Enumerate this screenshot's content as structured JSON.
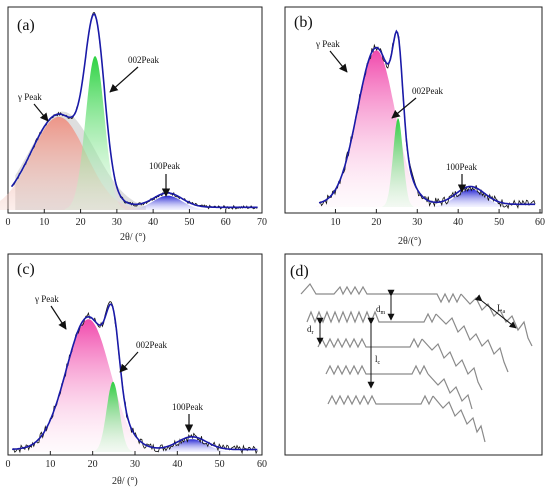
{
  "panels": {
    "a": {
      "label": "(a)",
      "xlabel": "2θ/ (°)",
      "xticks": [
        "0",
        "10",
        "20",
        "30",
        "40",
        "50",
        "60",
        "70"
      ],
      "annotations": {
        "gamma": "γ Peak",
        "p002": "002Peak",
        "p100": "100Peak"
      }
    },
    "b": {
      "label": "(b)",
      "xlabel": "2θ/(°)",
      "xticks": [
        "10",
        "20",
        "30",
        "40",
        "50",
        "60"
      ],
      "annotations": {
        "gamma": "γ Peak",
        "p002": "002Peak",
        "p100": "100Peak"
      }
    },
    "c": {
      "label": "(c)",
      "xlabel": "2θ/ (°)",
      "xticks": [
        "0",
        "10",
        "20",
        "30",
        "40",
        "50",
        "60"
      ],
      "annotations": {
        "gamma": "γ Peak",
        "p002": "002Peak",
        "p100": "100Peak"
      }
    },
    "d": {
      "label": "(d)",
      "labels": {
        "dm": "d",
        "dm_sub": "m",
        "dr": "d",
        "dr_sub": "r",
        "lc": "l",
        "lc_sub": "c",
        "la": "L",
        "la_sub": "a"
      }
    }
  },
  "colors": {
    "envelope": "#1a1aa8",
    "gamma_a": "#f0a090",
    "gamma_b": "#f050b0",
    "peak002": "#30d040",
    "peak100": "#2020c0",
    "raw": "#111111",
    "shadow": "#c8c8c8"
  },
  "chart_data": [
    {
      "panel": "a",
      "type": "line",
      "xlim": [
        0,
        70
      ],
      "xlabel": "2θ/ (°)",
      "ylabel": "",
      "series": [
        {
          "center": 14,
          "width": 7.5,
          "amp": 0.52,
          "skew": 0,
          "role": "gamma"
        },
        {
          "center": 24,
          "width": 2.6,
          "amp": 0.86,
          "skew": 0,
          "role": "p002"
        },
        {
          "center": 44,
          "width": 4.0,
          "amp": 0.08,
          "skew": 0,
          "role": "p100"
        }
      ],
      "ymax": 1.05
    },
    {
      "panel": "b",
      "type": "line",
      "xlim": [
        5,
        60
      ],
      "xlabel": "2θ/(°)",
      "ylabel": "",
      "series": [
        {
          "center": 20,
          "width": 4.6,
          "amp": 0.88,
          "skew": 0,
          "role": "gamma"
        },
        {
          "center": 25.3,
          "width": 1.2,
          "amp": 0.5,
          "skew": 0,
          "role": "p002"
        },
        {
          "center": 43,
          "width": 3.5,
          "amp": 0.1,
          "skew": 0,
          "role": "p100"
        }
      ],
      "ymax": 1.05
    },
    {
      "panel": "c",
      "type": "line",
      "xlim": [
        0,
        60
      ],
      "xlabel": "2θ/ (°)",
      "ylabel": "",
      "series": [
        {
          "center": 19,
          "width": 5.2,
          "amp": 0.83,
          "skew": 0,
          "role": "gamma"
        },
        {
          "center": 24.8,
          "width": 1.5,
          "amp": 0.44,
          "skew": 0,
          "role": "p002"
        },
        {
          "center": 43.5,
          "width": 3.4,
          "amp": 0.08,
          "skew": 0,
          "role": "p100"
        }
      ],
      "ymax": 1.1
    }
  ]
}
